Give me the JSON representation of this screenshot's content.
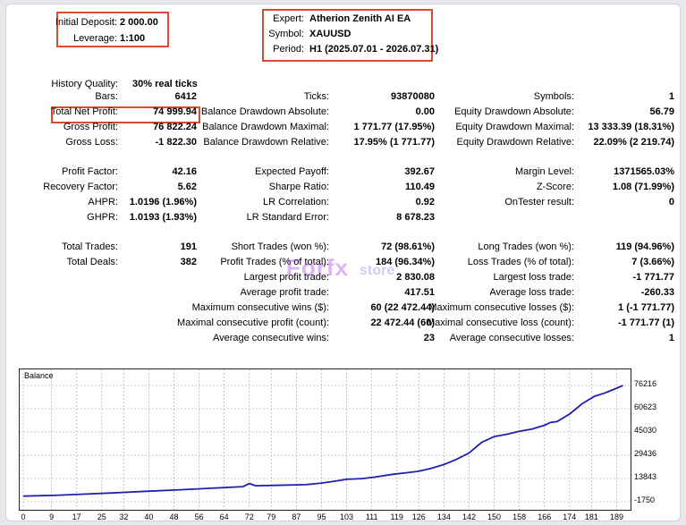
{
  "header": {
    "deposit_label": "Initial Deposit:",
    "deposit_value": "2 000.00",
    "leverage_label": "Leverage:",
    "leverage_value": "1:100",
    "expert_label": "Expert:",
    "expert_value": "Atherion Zenith AI EA",
    "symbol_label": "Symbol:",
    "symbol_value": "XAUUSD",
    "period_label": "Period:",
    "period_value": "H1 (2025.07.01 - 2026.07.31)"
  },
  "history": {
    "label": "History Quality:",
    "value": "30% real ticks"
  },
  "col1": [
    {
      "label": "Bars:",
      "value": "6412"
    },
    {
      "label": "Total Net Profit:",
      "value": "74 999.94"
    },
    {
      "label": "Gross Profit:",
      "value": "76 822.24"
    },
    {
      "label": "Gross Loss:",
      "value": "-1 822.30"
    },
    {
      "label": "Profit Factor:",
      "value": "42.16"
    },
    {
      "label": "Recovery Factor:",
      "value": "5.62"
    },
    {
      "label": "AHPR:",
      "value": "1.0196 (1.96%)"
    },
    {
      "label": "GHPR:",
      "value": "1.0193 (1.93%)"
    },
    {
      "label": "Total Trades:",
      "value": "191"
    },
    {
      "label": "Total Deals:",
      "value": "382"
    }
  ],
  "col2": [
    {
      "label": "Ticks:",
      "value": "93870080"
    },
    {
      "label": "Balance Drawdown Absolute:",
      "value": "0.00"
    },
    {
      "label": "Balance Drawdown Maximal:",
      "value": "1 771.77 (17.95%)"
    },
    {
      "label": "Balance Drawdown Relative:",
      "value": "17.95% (1 771.77)"
    },
    {
      "label": "Expected Payoff:",
      "value": "392.67"
    },
    {
      "label": "Sharpe Ratio:",
      "value": "110.49"
    },
    {
      "label": "LR Correlation:",
      "value": "0.92"
    },
    {
      "label": "LR Standard Error:",
      "value": "8 678.23"
    },
    {
      "label": "Short Trades (won %):",
      "value": "72 (98.61%)"
    },
    {
      "label": "Profit Trades (% of total):",
      "value": "184 (96.34%)"
    },
    {
      "label": "Largest profit trade:",
      "value": "2 830.08"
    },
    {
      "label": "Average profit trade:",
      "value": "417.51"
    },
    {
      "label": "Maximum consecutive wins ($):",
      "value": "60 (22 472.44)"
    },
    {
      "label": "Maximal consecutive profit (count):",
      "value": "22 472.44 (60)"
    },
    {
      "label": "Average consecutive wins:",
      "value": "23"
    }
  ],
  "col3": [
    {
      "label": "Symbols:",
      "value": "1"
    },
    {
      "label": "Equity Drawdown Absolute:",
      "value": "56.79"
    },
    {
      "label": "Equity Drawdown Maximal:",
      "value": "13 333.39 (18.31%)"
    },
    {
      "label": "Equity Drawdown Relative:",
      "value": "22.09% (2 219.74)"
    },
    {
      "label": "Margin Level:",
      "value": "1371565.03%"
    },
    {
      "label": "Z-Score:",
      "value": "1.08 (71.99%)"
    },
    {
      "label": "OnTester result:",
      "value": "0"
    },
    {
      "label": "Long Trades (won %):",
      "value": "119 (94.96%)"
    },
    {
      "label": "Loss Trades (% of total):",
      "value": "7 (3.66%)"
    },
    {
      "label": "Largest loss trade:",
      "value": "-1 771.77"
    },
    {
      "label": "Average loss trade:",
      "value": "-260.33"
    },
    {
      "label": "Maximum consecutive losses ($):",
      "value": "1 (-1 771.77)"
    },
    {
      "label": "Maximal consecutive loss (count):",
      "value": "-1 771.77 (1)"
    },
    {
      "label": "Average consecutive losses:",
      "value": "1"
    }
  ],
  "watermark": {
    "brand": "Forfx",
    "sub": "store"
  },
  "colors": {
    "highlight_border": "#d94a33",
    "balance_line": "#1f1fb0",
    "grid": "#b8b8b8"
  },
  "chart_data": {
    "type": "line",
    "title": "Balance",
    "y_ticks": [
      "76216",
      "60623",
      "45030",
      "29436",
      "13843",
      "-1750"
    ],
    "ylim": [
      -1750,
      76216
    ],
    "x_ticks": [
      "0",
      "9",
      "17",
      "25",
      "32",
      "40",
      "48",
      "56",
      "64",
      "72",
      "79",
      "87",
      "95",
      "103",
      "111",
      "119",
      "126",
      "134",
      "142",
      "150",
      "158",
      "166",
      "174",
      "181",
      "189"
    ],
    "xlim": [
      0,
      192
    ],
    "grid": true,
    "series": [
      {
        "values": [
          [
            0,
            2000
          ],
          [
            10,
            2500
          ],
          [
            20,
            3400
          ],
          [
            30,
            4300
          ],
          [
            40,
            5300
          ],
          [
            50,
            6300
          ],
          [
            60,
            7300
          ],
          [
            70,
            8400
          ],
          [
            72,
            10500
          ],
          [
            74,
            9000
          ],
          [
            80,
            9200
          ],
          [
            90,
            9700
          ],
          [
            95,
            10800
          ],
          [
            100,
            12300
          ],
          [
            103,
            13300
          ],
          [
            108,
            13800
          ],
          [
            112,
            14800
          ],
          [
            118,
            16700
          ],
          [
            122,
            17700
          ],
          [
            126,
            18700
          ],
          [
            130,
            20700
          ],
          [
            134,
            23200
          ],
          [
            138,
            26700
          ],
          [
            142,
            31000
          ],
          [
            146,
            38000
          ],
          [
            150,
            42000
          ],
          [
            154,
            43500
          ],
          [
            158,
            45500
          ],
          [
            162,
            47000
          ],
          [
            166,
            49500
          ],
          [
            168,
            51500
          ],
          [
            170,
            52000
          ],
          [
            174,
            57000
          ],
          [
            178,
            64000
          ],
          [
            182,
            69000
          ],
          [
            185,
            71000
          ],
          [
            188,
            73500
          ],
          [
            191,
            76200
          ]
        ]
      }
    ]
  }
}
